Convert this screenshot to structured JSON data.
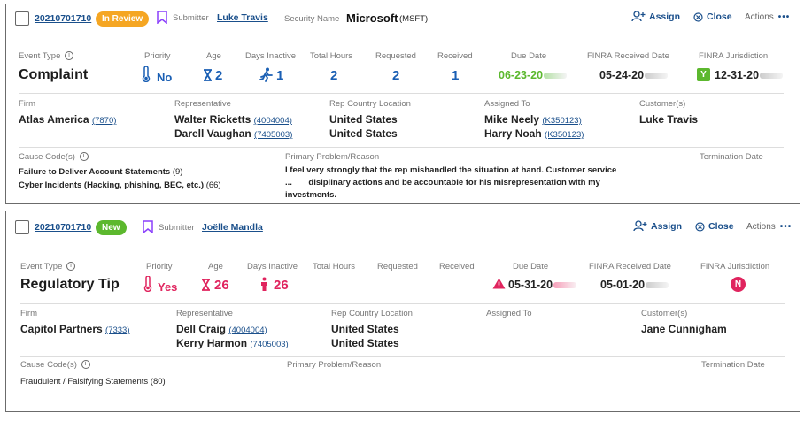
{
  "case1": {
    "id": "20210701710",
    "status": "In Review",
    "status_color": "#f5a623",
    "submitter_label": "Submitter",
    "submitter_name": "Luke Travis",
    "security_label": "Security Name",
    "security_name": "Microsoft",
    "security_ticker": "(MSFT)",
    "assign_label": "Assign",
    "close_label": "Close",
    "actions_label": "Actions",
    "event_type_label": "Event Type",
    "event_type": "Complaint",
    "priority_label": "Priority",
    "priority": "No",
    "age_label": "Age",
    "age": "2",
    "days_inactive_label": "Days Inactive",
    "days_inactive": "1",
    "total_hours_label": "Total Hours",
    "total_hours": "2",
    "requested_label": "Requested",
    "requested": "2",
    "received_label": "Received",
    "received": "1",
    "due_date_label": "Due Date",
    "due_date": "06-23-20",
    "finra_received_label": "FINRA Received Date",
    "finra_received": "05-24-20",
    "finra_juris_label": "FINRA Jurisdiction",
    "finra_juris_badge": "Y",
    "finra_juris_date": "12-31-20",
    "firm_label": "Firm",
    "firm_name": "Atlas America",
    "firm_id": "(7870)",
    "rep_label": "Representative",
    "reps": [
      {
        "name": "Walter Ricketts",
        "id": "(4004004)"
      },
      {
        "name": "Darell Vaughan",
        "id": "(7405003)"
      }
    ],
    "rep_country_label": "Rep Country Location",
    "rep_countries": [
      "United States",
      "United States"
    ],
    "assigned_label": "Assigned To",
    "assigned": [
      {
        "name": "Mike Neely",
        "id": "(K350123)"
      },
      {
        "name": "Harry Noah",
        "id": "(K350123)"
      }
    ],
    "customers_label": "Customer(s)",
    "customer": "Luke Travis",
    "cause_label": "Cause Code(s)",
    "causes": [
      {
        "text": "Failure to Deliver Account Statements",
        "count": "(9)"
      },
      {
        "text": "Cyber Incidents (Hacking, phishing, BEC, etc.)",
        "count": "(66)"
      }
    ],
    "problem_label": "Primary Problem/Reason",
    "problem_line1": "I feel very strongly that the rep mishandled the situation at hand. Customer service",
    "problem_line2": "...       disiplinary actions and be accountable for his misrepresentation with my",
    "problem_line3": "investments.",
    "termination_label": "Termination Date"
  },
  "case2": {
    "id": "20210701710",
    "status": "New",
    "status_color": "#5cb82e",
    "submitter_label": "Submitter",
    "submitter_name": "Joëlle Mandla",
    "assign_label": "Assign",
    "close_label": "Close",
    "actions_label": "Actions",
    "event_type_label": "Event Type",
    "event_type": "Regulatory Tip",
    "priority_label": "Priority",
    "priority": "Yes",
    "age_label": "Age",
    "age": "26",
    "days_inactive_label": "Days Inactive",
    "days_inactive": "26",
    "total_hours_label": "Total Hours",
    "requested_label": "Requested",
    "received_label": "Received",
    "due_date_label": "Due Date",
    "due_date": "05-31-20",
    "finra_received_label": "FINRA Received Date",
    "finra_received": "05-01-20",
    "finra_juris_label": "FINRA Jurisdiction",
    "finra_juris_badge": "N",
    "firm_label": "Firm",
    "firm_name": "Capitol Partners",
    "firm_id": "(7333)",
    "rep_label": "Representative",
    "reps": [
      {
        "name": "Dell Craig",
        "id": "(4004004)"
      },
      {
        "name": "Kerry Harmon",
        "id": "(7405003)"
      }
    ],
    "rep_country_label": "Rep Country Location",
    "rep_countries": [
      "United States",
      "United States"
    ],
    "assigned_label": "Assigned To",
    "customers_label": "Customer(s)",
    "customer": "Jane Cunnigham",
    "cause_label": "Cause Code(s)",
    "causes": [
      {
        "text": "Fraudulent / Falsifying Statements",
        "count": "(80)"
      }
    ],
    "problem_label": "Primary Problem/Reason",
    "termination_label": "Termination Date"
  },
  "colors": {
    "link": "#1a4f8b",
    "value_blue": "#1a5fb4",
    "alert_red": "#e0245e",
    "due_green": "#5cb82e"
  }
}
